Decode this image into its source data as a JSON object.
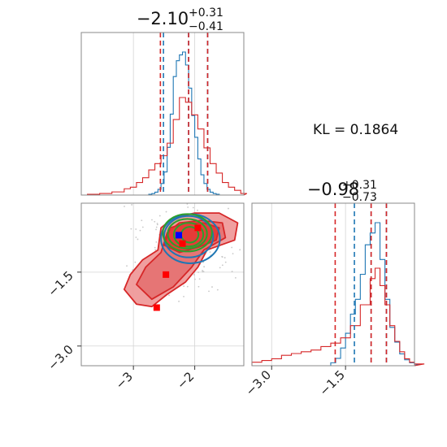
{
  "figure": {
    "kl_text": "KL = 0.1864",
    "colors": {
      "blue": "#1f77b4",
      "red": "#d62728",
      "green": "#2ca02c",
      "grid": "#d4d4d4",
      "frame": "#888888"
    }
  },
  "chart_data": [
    {
      "type": "area",
      "panel": "marginal-top",
      "title": {
        "median": "−2.10",
        "plus": "+0.31",
        "minus": "−0.41"
      },
      "xlim": [
        -3.85,
        -1.2
      ],
      "grid": true,
      "series": [
        {
          "color": "#1f77b4",
          "x": [
            -2.75,
            -2.7,
            -2.65,
            -2.6,
            -2.55,
            -2.5,
            -2.45,
            -2.4,
            -2.35,
            -2.3,
            -2.25,
            -2.2,
            -2.15,
            -2.1,
            -2.05,
            -2.0,
            -1.95,
            -1.9,
            -1.85,
            -1.8,
            -1.75,
            -1.7,
            -1.65,
            -1.6
          ],
          "values": [
            0.005,
            0.01,
            0.02,
            0.04,
            0.08,
            0.16,
            0.33,
            0.56,
            0.82,
            0.93,
            0.97,
            0.99,
            0.9,
            0.74,
            0.55,
            0.4,
            0.25,
            0.14,
            0.08,
            0.04,
            0.02,
            0.01,
            0.005,
            0.0
          ],
          "quantiles": [
            -2.51,
            -2.1,
            -1.79
          ]
        },
        {
          "color": "#d62728",
          "x": [
            -3.85,
            -3.75,
            -3.65,
            -3.55,
            -3.45,
            -3.35,
            -3.25,
            -3.15,
            -3.05,
            -2.95,
            -2.85,
            -2.75,
            -2.65,
            -2.55,
            -2.45,
            -2.35,
            -2.25,
            -2.15,
            -2.05,
            -1.95,
            -1.85,
            -1.75,
            -1.65,
            -1.55,
            -1.45,
            -1.35,
            -1.25
          ],
          "values": [
            0.0,
            0.005,
            0.005,
            0.01,
            0.01,
            0.02,
            0.02,
            0.04,
            0.05,
            0.08,
            0.11,
            0.16,
            0.2,
            0.25,
            0.33,
            0.48,
            0.62,
            0.59,
            0.51,
            0.42,
            0.3,
            0.2,
            0.14,
            0.08,
            0.05,
            0.03,
            0.01
          ],
          "quantiles": [
            -2.56,
            -2.1,
            -1.79
          ]
        }
      ]
    },
    {
      "type": "area",
      "panel": "marginal-right",
      "title": {
        "median": "−0.98",
        "plus": "+0.31",
        "minus": "−0.73"
      },
      "xlim": [
        -3.4,
        -0.1
      ],
      "xticks": [
        -3.0,
        -1.5
      ],
      "xticklabels": [
        "−3.0",
        "−1.5"
      ],
      "grid": true,
      "series": [
        {
          "color": "#1f77b4",
          "x": [
            -1.9,
            -1.8,
            -1.7,
            -1.6,
            -1.5,
            -1.4,
            -1.3,
            -1.2,
            -1.1,
            -1.0,
            -0.9,
            -0.8,
            -0.7,
            -0.6,
            -0.5,
            -0.4,
            -0.3,
            -0.2,
            -0.1
          ],
          "values": [
            0.0,
            0.02,
            0.05,
            0.12,
            0.22,
            0.35,
            0.45,
            0.62,
            0.82,
            0.9,
            0.97,
            0.72,
            0.45,
            0.26,
            0.16,
            0.08,
            0.04,
            0.02,
            0.01
          ],
          "quantiles": [
            -1.32,
            -0.98,
            -0.67
          ]
        },
        {
          "color": "#d62728",
          "x": [
            -3.4,
            -3.2,
            -3.0,
            -2.8,
            -2.6,
            -2.4,
            -2.2,
            -2.0,
            -1.8,
            -1.6,
            -1.4,
            -1.2,
            -1.0,
            -0.9,
            -0.8,
            -0.7,
            -0.6,
            -0.5,
            -0.4,
            -0.3,
            -0.2,
            -0.1
          ],
          "values": [
            0.02,
            0.03,
            0.04,
            0.06,
            0.07,
            0.08,
            0.09,
            0.11,
            0.13,
            0.16,
            0.23,
            0.35,
            0.5,
            0.56,
            0.46,
            0.35,
            0.23,
            0.14,
            0.08,
            0.04,
            0.02,
            0.01
          ],
          "quantiles": [
            -1.71,
            -0.98,
            -0.67
          ]
        }
      ]
    },
    {
      "type": "scatter",
      "panel": "joint",
      "xlim": [
        -3.85,
        -1.2
      ],
      "ylim": [
        -3.4,
        -0.1
      ],
      "xticks": [
        -3,
        -2
      ],
      "xticklabels": [
        "−3",
        "−2"
      ],
      "yticks": [
        -1.5,
        -3.0
      ],
      "yticklabels": [
        "−1.5",
        "−3.0"
      ],
      "grid": true,
      "contours": [
        {
          "color": "#d62728",
          "fill": "#ef9a9a",
          "points": [
            [
              -3.15,
              -1.85
            ],
            [
              -3.05,
              -1.55
            ],
            [
              -2.85,
              -1.25
            ],
            [
              -2.6,
              -1.05
            ],
            [
              -2.55,
              -0.6
            ],
            [
              -2.35,
              -0.4
            ],
            [
              -2.0,
              -0.3
            ],
            [
              -1.6,
              -0.3
            ],
            [
              -1.3,
              -0.5
            ],
            [
              -1.35,
              -0.85
            ],
            [
              -1.8,
              -1.05
            ],
            [
              -1.95,
              -1.4
            ],
            [
              -2.15,
              -1.7
            ],
            [
              -2.45,
              -1.95
            ],
            [
              -2.7,
              -2.2
            ],
            [
              -2.95,
              -2.15
            ]
          ]
        },
        {
          "color": "#d62728",
          "fill": "#e57373",
          "points": [
            [
              -2.95,
              -1.75
            ],
            [
              -2.8,
              -1.4
            ],
            [
              -2.55,
              -1.1
            ],
            [
              -2.45,
              -0.7
            ],
            [
              -2.25,
              -0.5
            ],
            [
              -1.9,
              -0.45
            ],
            [
              -1.55,
              -0.5
            ],
            [
              -1.5,
              -0.8
            ],
            [
              -1.85,
              -1.05
            ],
            [
              -2.05,
              -1.4
            ],
            [
              -2.35,
              -1.8
            ],
            [
              -2.7,
              -2.05
            ]
          ]
        },
        {
          "color": "#d62728",
          "fill": "#e53935",
          "points": [
            [
              -2.5,
              -0.95
            ],
            [
              -2.4,
              -0.6
            ],
            [
              -2.15,
              -0.5
            ],
            [
              -1.85,
              -0.5
            ],
            [
              -1.6,
              -0.6
            ],
            [
              -1.65,
              -0.85
            ],
            [
              -1.95,
              -1.0
            ],
            [
              -2.25,
              -1.1
            ]
          ]
        },
        {
          "color": "#1f77b4",
          "ellipse": {
            "cx": -2.07,
            "cy": -0.82,
            "rx": 0.48,
            "ry": 0.5
          }
        },
        {
          "color": "#1f77b4",
          "ellipse": {
            "cx": -2.1,
            "cy": -0.78,
            "rx": 0.4,
            "ry": 0.42
          }
        },
        {
          "color": "#2ca02c",
          "ellipse": {
            "cx": -2.12,
            "cy": -0.7,
            "rx": 0.4,
            "ry": 0.38
          }
        },
        {
          "color": "#2ca02c",
          "ellipse": {
            "cx": -2.12,
            "cy": -0.72,
            "rx": 0.32,
            "ry": 0.3
          }
        },
        {
          "color": "#2ca02c",
          "ellipse": {
            "cx": -2.1,
            "cy": -0.74,
            "rx": 0.24,
            "ry": 0.24
          }
        },
        {
          "color": "#2ca02c",
          "ellipse": {
            "cx": -2.08,
            "cy": -0.74,
            "rx": 0.14,
            "ry": 0.16
          }
        }
      ],
      "markers": [
        {
          "color": "#ff0000",
          "x": -1.95,
          "y": -0.6
        },
        {
          "color": "#ff0000",
          "x": -2.2,
          "y": -0.92
        },
        {
          "color": "#ff0000",
          "x": -2.47,
          "y": -1.55
        },
        {
          "color": "#ff0000",
          "x": -2.62,
          "y": -2.22
        },
        {
          "color": "#0000ff",
          "x": -2.26,
          "y": -0.75
        }
      ]
    }
  ]
}
